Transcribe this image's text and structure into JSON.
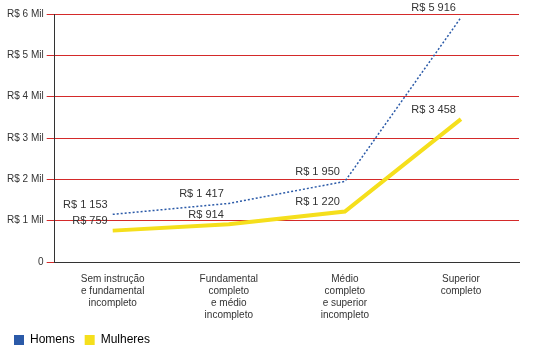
{
  "chart_data": {
    "type": "line",
    "categories": [
      "Sem instrução\ne fundamental\nincompleto",
      "Fundamental\ncompleto\ne médio\nincompleto",
      "Médio\ncompleto\ne superior\nincompleto",
      "Superior\ncompleto"
    ],
    "series": [
      {
        "name": "Homens",
        "color": "#2b5aa8",
        "line_style": "dotted",
        "values": [
          1153,
          1417,
          1950,
          5916
        ],
        "value_labels": [
          "R$ 1 153",
          "R$ 1 417",
          "R$ 1 950",
          "R$ 5 916"
        ]
      },
      {
        "name": "Mulheres",
        "color": "#f5df1c",
        "line_style": "solid",
        "values": [
          759,
          914,
          1220,
          3458
        ],
        "value_labels": [
          "R$ 759",
          "R$ 914",
          "R$ 1 220",
          "R$ 3 458"
        ]
      }
    ],
    "ylim": [
      0,
      6000
    ],
    "yticks": [
      0,
      {
        "value": 1000,
        "label": "R$ 1 Mil"
      },
      {
        "value": 2000,
        "label": "R$ 2 Mil"
      },
      {
        "value": 3000,
        "label": "R$ 3 Mil"
      },
      {
        "value": 4000,
        "label": "R$ 4 Mil"
      },
      {
        "value": 5000,
        "label": "R$ 5 Mil"
      },
      {
        "value": 6000,
        "label": "R$ 6 Mil"
      }
    ],
    "grid": true,
    "legend": "bottom",
    "data_labels": true
  }
}
